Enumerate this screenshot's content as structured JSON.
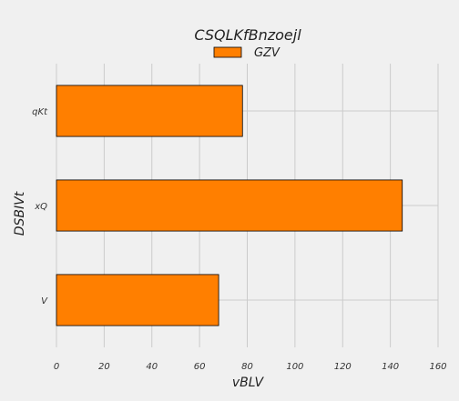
{
  "chart_data": {
    "type": "bar",
    "orientation": "horizontal",
    "title": "CSQLKfBnzoejl",
    "xlabel": "vBLV",
    "ylabel": "DSBIVt",
    "categories": [
      "V",
      "xQ",
      "qKt"
    ],
    "series": [
      {
        "name": "GZV",
        "values": [
          68,
          145,
          78
        ],
        "color": "#ff7f00"
      }
    ],
    "xlim": [
      0,
      160
    ],
    "xticks": [
      0,
      20,
      40,
      60,
      80,
      100,
      120,
      140,
      160
    ],
    "grid": true,
    "legend_position": "top-center",
    "background_color": "#f0f0f0",
    "bar_edge_color": "#000000"
  }
}
